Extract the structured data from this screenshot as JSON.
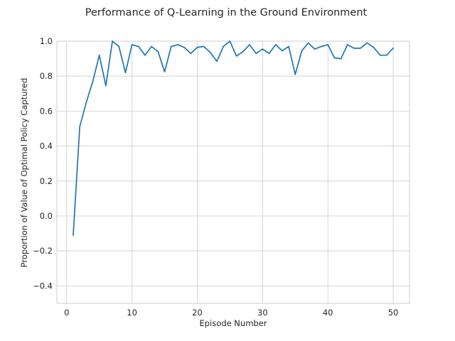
{
  "chart_data": {
    "type": "line",
    "title": "Performance of Q-Learning in the Ground Environment",
    "xlabel": "Episode Number",
    "ylabel": "Proportion of Value of Optimal Policy Captured",
    "xlim": [
      -1.5,
      52.5
    ],
    "ylim": [
      -0.5,
      1.0
    ],
    "xticks": [
      0,
      10,
      20,
      30,
      40,
      50
    ],
    "yticks": [
      -0.4,
      -0.2,
      0.0,
      0.2,
      0.4,
      0.6,
      0.8,
      1.0
    ],
    "xtick_labels": [
      "0",
      "10",
      "20",
      "30",
      "40",
      "50"
    ],
    "ytick_labels": [
      "−0.4",
      "−0.2",
      "0.0",
      "0.2",
      "0.4",
      "0.6",
      "0.8",
      "1.0"
    ],
    "grid": true,
    "color": "#1f77b4",
    "x": [
      1,
      2,
      3,
      4,
      5,
      6,
      7,
      8,
      9,
      10,
      11,
      12,
      13,
      14,
      15,
      16,
      17,
      18,
      19,
      20,
      21,
      22,
      23,
      24,
      25,
      26,
      27,
      28,
      29,
      30,
      31,
      32,
      33,
      34,
      35,
      36,
      37,
      38,
      39,
      40,
      41,
      42,
      43,
      44,
      45,
      46,
      47,
      48,
      49,
      50
    ],
    "values": [
      -0.11,
      0.51,
      0.65,
      0.77,
      0.92,
      0.745,
      1.0,
      0.97,
      0.82,
      0.98,
      0.97,
      0.92,
      0.97,
      0.94,
      0.825,
      0.97,
      0.98,
      0.965,
      0.93,
      0.965,
      0.97,
      0.935,
      0.885,
      0.97,
      1.0,
      0.915,
      0.94,
      0.98,
      0.93,
      0.955,
      0.93,
      0.98,
      0.945,
      0.97,
      0.81,
      0.945,
      0.99,
      0.955,
      0.97,
      0.98,
      0.905,
      0.9,
      0.98,
      0.96,
      0.96,
      0.99,
      0.965,
      0.92,
      0.92,
      0.96
    ]
  }
}
